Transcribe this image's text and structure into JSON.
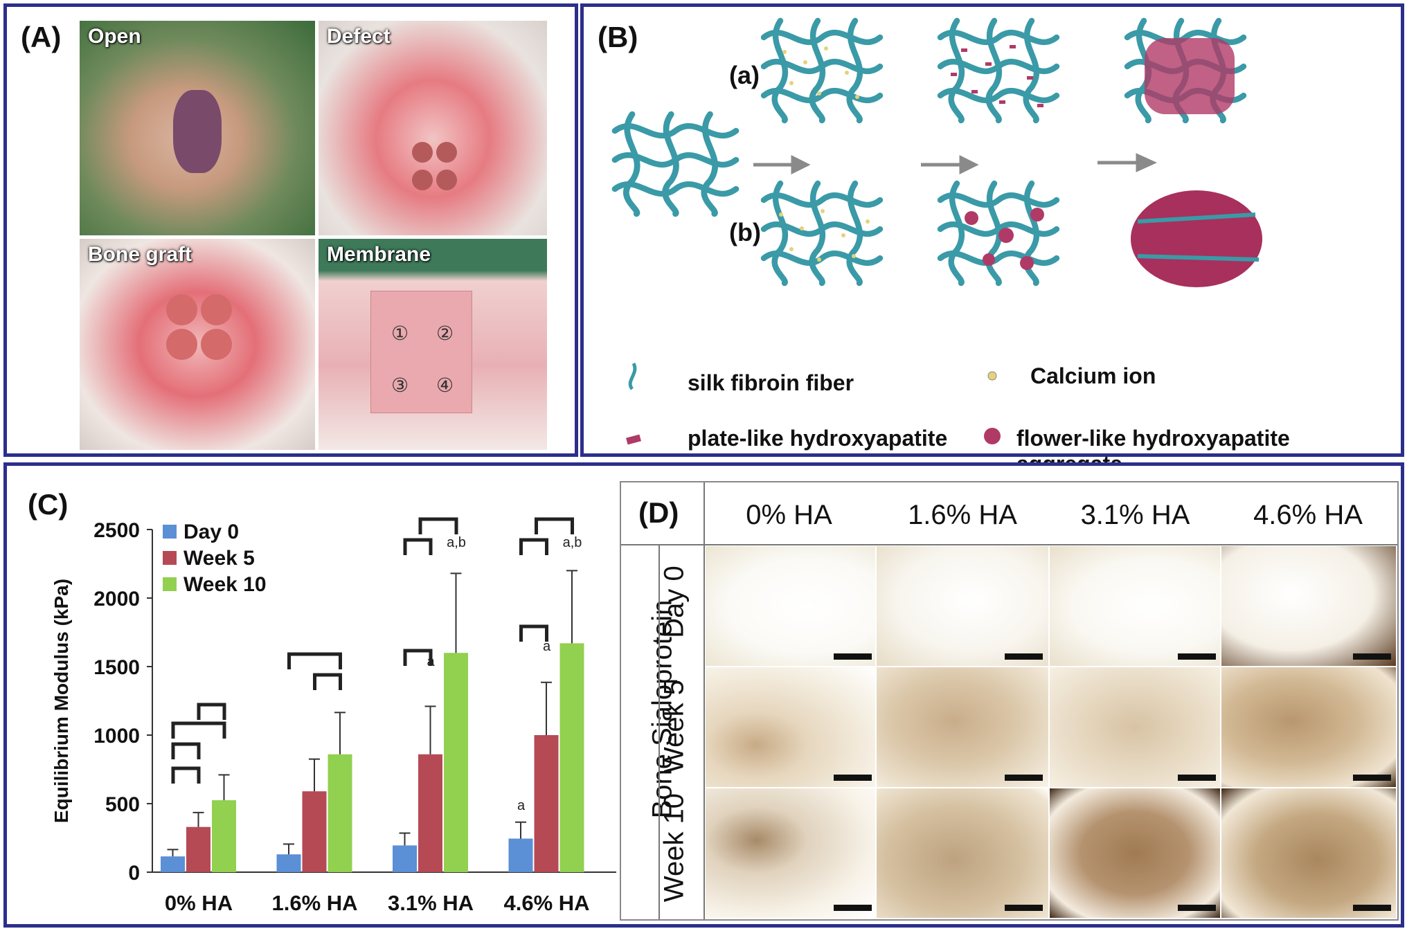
{
  "panelA": {
    "label": "(A)",
    "photos": [
      "Open",
      "Defect",
      "Bone graft",
      "Membrane"
    ],
    "membrane_numbers": [
      "①",
      "②",
      "③",
      "④"
    ]
  },
  "panelB": {
    "label": "(B)",
    "row_a": "(a)",
    "row_b": "(b)",
    "legend": {
      "fiber": "silk fibroin fiber",
      "calcium": "Calcium ion",
      "plate": "plate-like hydroxyapatite",
      "flower": "flower-like hydroxyapatite aggregate"
    }
  },
  "panelC": {
    "label": "(C)",
    "sig_letters": {
      "a": "a",
      "ab": "a,b"
    }
  },
  "chart_data": {
    "type": "bar",
    "categories": [
      "0% HA",
      "1.6% HA",
      "3.1% HA",
      "4.6% HA"
    ],
    "series": [
      {
        "name": "Day 0",
        "values": [
          115,
          130,
          195,
          245
        ],
        "errors": [
          50,
          75,
          90,
          120
        ]
      },
      {
        "name": "Week 5",
        "values": [
          330,
          590,
          860,
          1000
        ],
        "errors": [
          105,
          235,
          350,
          385
        ]
      },
      {
        "name": "Week 10",
        "values": [
          525,
          860,
          1600,
          1670
        ],
        "errors": [
          185,
          305,
          580,
          530
        ]
      }
    ],
    "ylabel": "Equilibrium Modulus (kPa)",
    "xlabel": "",
    "ylim": [
      0,
      2500
    ],
    "yticks": [
      0,
      500,
      1000,
      1500,
      2000,
      2500
    ],
    "colors": [
      "#5b8fd6",
      "#b54a55",
      "#92d050"
    ],
    "legend_position": "top-left"
  },
  "panelD": {
    "label": "(D)",
    "columns": [
      "0% HA",
      "1.6% HA",
      "3.1% HA",
      "4.6% HA"
    ],
    "rows": [
      "Day 0",
      "Week 5",
      "Week 10"
    ],
    "side_label": "Bone Sialoprotein"
  }
}
